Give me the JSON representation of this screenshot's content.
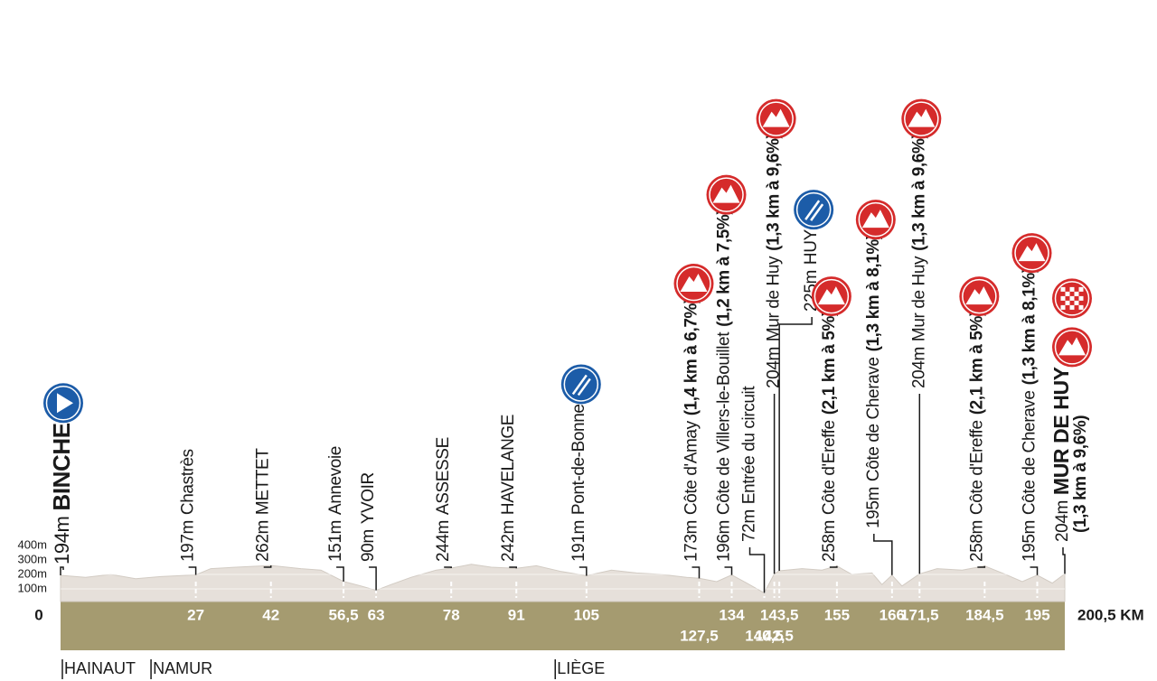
{
  "chart_data": {
    "type": "profile",
    "x": [
      0,
      5,
      10,
      15,
      20,
      27,
      30,
      35,
      42,
      48,
      52,
      56.5,
      60,
      63,
      66,
      70,
      75,
      78,
      82,
      86,
      91,
      95,
      100,
      105,
      110,
      115,
      120,
      125,
      127.5,
      131,
      134,
      137,
      140.5,
      142.5,
      143.5,
      148,
      152,
      155,
      158,
      162,
      164,
      166,
      168,
      171.5,
      175,
      180,
      184.5,
      188,
      192,
      195,
      198,
      200.5
    ],
    "values": [
      194,
      180,
      200,
      170,
      185,
      197,
      240,
      250,
      262,
      240,
      230,
      151,
      120,
      90,
      130,
      180,
      230,
      244,
      270,
      250,
      242,
      260,
      220,
      191,
      230,
      210,
      200,
      180,
      173,
      150,
      196,
      140,
      72,
      204,
      225,
      240,
      230,
      258,
      200,
      210,
      130,
      195,
      120,
      204,
      240,
      230,
      258,
      210,
      150,
      195,
      140,
      204
    ],
    "color": "#e6e0da",
    "ground_color": "#a59b70",
    "xlim": [
      0,
      200.5
    ],
    "ylim": [
      0,
      400
    ],
    "yticks": [
      {
        "value": 100,
        "label": "100m"
      },
      {
        "value": 200,
        "label": "200m"
      },
      {
        "value": 300,
        "label": "300m"
      },
      {
        "value": 400,
        "label": "400m"
      }
    ],
    "xticks": [
      0,
      27,
      42,
      {
        "value": 56.5,
        "label": "56,5"
      },
      63,
      78,
      91,
      105,
      {
        "value": 127.5,
        "label": "127,5"
      },
      134,
      {
        "value": 140.5,
        "label": "140,5"
      },
      {
        "value": 142.5,
        "label": "142,5"
      },
      {
        "value": 143.5,
        "label": "143,5"
      },
      155,
      166,
      {
        "value": 171.5,
        "label": "171,5"
      },
      {
        "value": 184.5,
        "label": "184,5"
      },
      195,
      {
        "value": 200.5,
        "label": "200,5 KM"
      }
    ],
    "waypoints": [
      {
        "km": 0,
        "altitude": "194m",
        "name": "BINCHE",
        "icon": "start"
      },
      {
        "km": 27,
        "altitude": "197m",
        "name": "Chastrès"
      },
      {
        "km": 42,
        "altitude": "262m",
        "name": "METTET"
      },
      {
        "km": 56.5,
        "altitude": "151m",
        "name": "Annevoie"
      },
      {
        "km": 63,
        "altitude": "90m",
        "name": "YVOIR"
      },
      {
        "km": 78,
        "altitude": "244m",
        "name": "ASSESSE"
      },
      {
        "km": 91,
        "altitude": "242m",
        "name": "HAVELANGE"
      },
      {
        "km": 105,
        "altitude": "191m",
        "name": "Pont-de-Bonne",
        "icon": "feed"
      },
      {
        "km": 127.5,
        "altitude": "173m",
        "name": "Côte d'Amay",
        "detail": "(1,4 km à 6,7%)",
        "icon": "climb"
      },
      {
        "km": 134,
        "altitude": "196m",
        "name": "Côte de Villers-le-Bouillet",
        "detail": "(1,2 km à 7,5%)",
        "icon": "climb"
      },
      {
        "km": 140.5,
        "altitude": "72m",
        "name": "Entrée du circuit"
      },
      {
        "km": 142.5,
        "altitude": "204m",
        "name": "Mur de Huy",
        "detail": "(1,3 km à 9,6%)",
        "icon": "climb"
      },
      {
        "km": 143.5,
        "altitude": "225m",
        "name": "HUY",
        "icon": "feed"
      },
      {
        "km": 155,
        "altitude": "258m",
        "name": "Côte d'Ereffe",
        "detail": "(2,1 km à 5%)",
        "icon": "climb"
      },
      {
        "km": 166,
        "altitude": "195m",
        "name": "Côte de Cherave",
        "detail": "(1,3 km à 8,1%)",
        "icon": "climb"
      },
      {
        "km": 171.5,
        "altitude": "204m",
        "name": "Mur de Huy",
        "detail": "(1,3 km à 9,6%)",
        "icon": "climb"
      },
      {
        "km": 184.5,
        "altitude": "258m",
        "name": "Côte d'Ereffe",
        "detail": "(2,1 km à 5%)",
        "icon": "climb"
      },
      {
        "km": 195,
        "altitude": "195m",
        "name": "Côte de Cherave",
        "detail": "(1,3 km à 8,1%)",
        "icon": "climb"
      },
      {
        "km": 200.5,
        "altitude": "204m",
        "name": "MUR DE HUY",
        "detail": "(1,3 km à 9,6%)",
        "icon": "finish"
      }
    ],
    "regions": [
      {
        "km": 0,
        "name": "HAINAUT"
      },
      {
        "km": 17.7,
        "name": "NAMUR"
      },
      {
        "km": 98.4,
        "name": "LIÈGE"
      }
    ]
  }
}
